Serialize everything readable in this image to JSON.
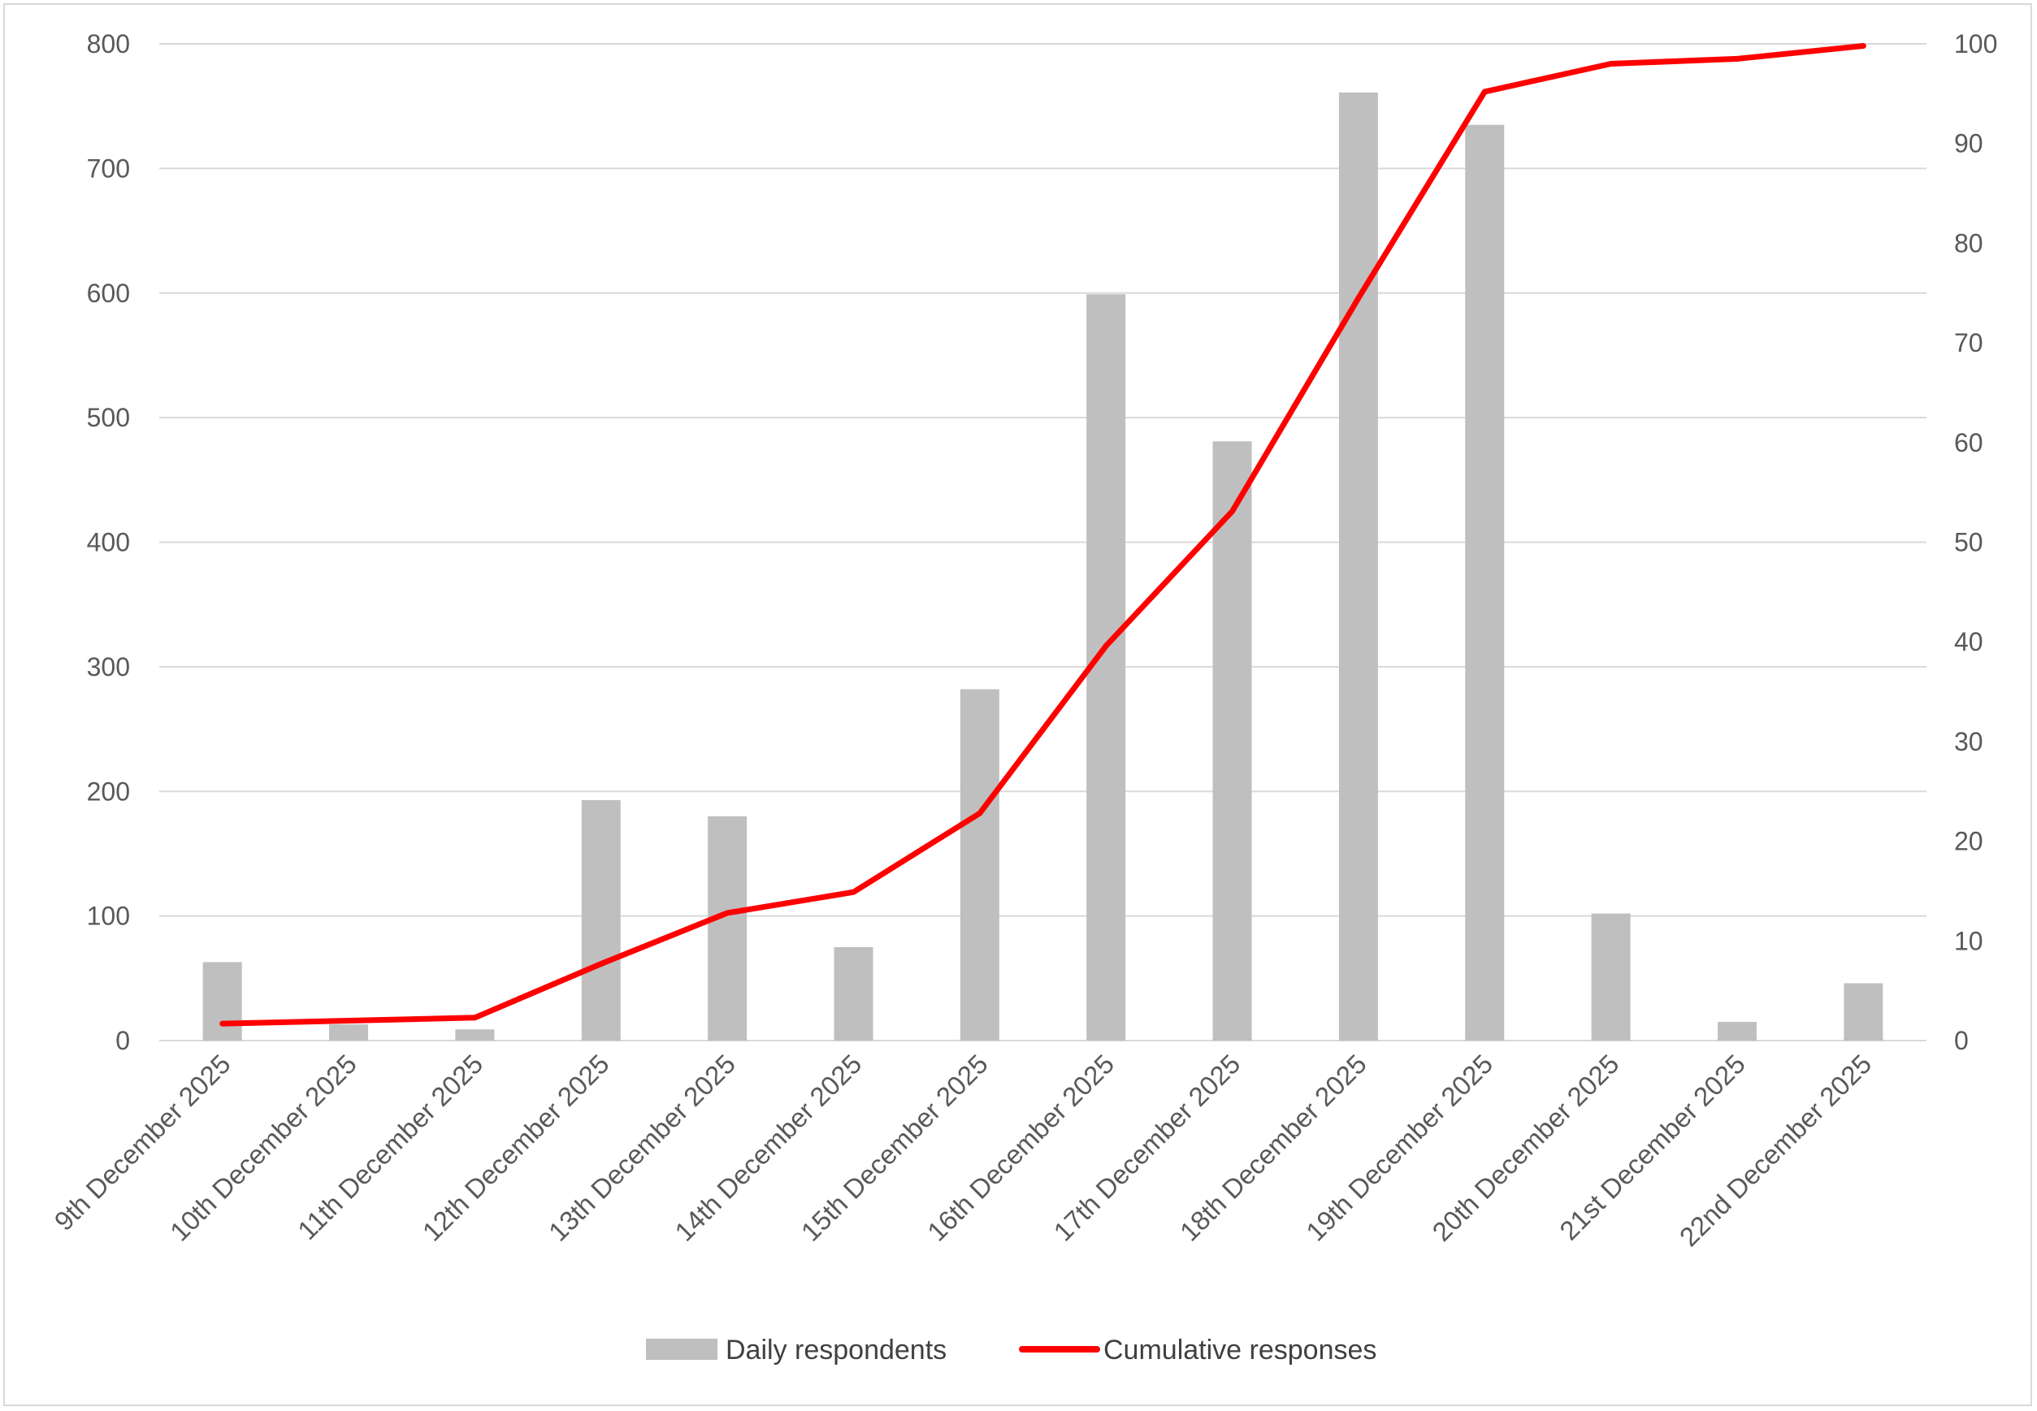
{
  "chart_data": {
    "type": "bar",
    "categories": [
      "9th December 2025",
      "10th December 2025",
      "11th December 2025",
      "12th December 2025",
      "13th December 2025",
      "14th December 2025",
      "15th December 2025",
      "16th December 2025",
      "17th December 2025",
      "18th December 2025",
      "19th December 2025",
      "20th December 2025",
      "21st December 2025",
      "22nd December 2025"
    ],
    "series": [
      {
        "name": "Daily respondents",
        "type": "bar",
        "axis": "left",
        "color": "#bfbfbf",
        "values": [
          63,
          13,
          9,
          193,
          180,
          75,
          282,
          599,
          481,
          761,
          735,
          102,
          15,
          46
        ]
      },
      {
        "name": "Cumulative responses",
        "type": "line",
        "axis": "right",
        "color": "#ff0000",
        "values": [
          1.7,
          2.0,
          2.3,
          7.7,
          12.8,
          14.9,
          22.8,
          39.6,
          53.1,
          74.5,
          95.2,
          98.0,
          98.5,
          99.8
        ]
      }
    ],
    "ylim_left": [
      0,
      800
    ],
    "yticks_left": [
      "0",
      "100",
      "200",
      "300",
      "400",
      "500",
      "600",
      "700",
      "800"
    ],
    "ylim_right": [
      0,
      100
    ],
    "yticks_right": [
      "0",
      "10",
      "20",
      "30",
      "40",
      "50",
      "60",
      "70",
      "80",
      "90",
      "100"
    ],
    "grid": true,
    "legend_position": "bottom",
    "title": "",
    "xlabel": "",
    "ylabel": ""
  }
}
